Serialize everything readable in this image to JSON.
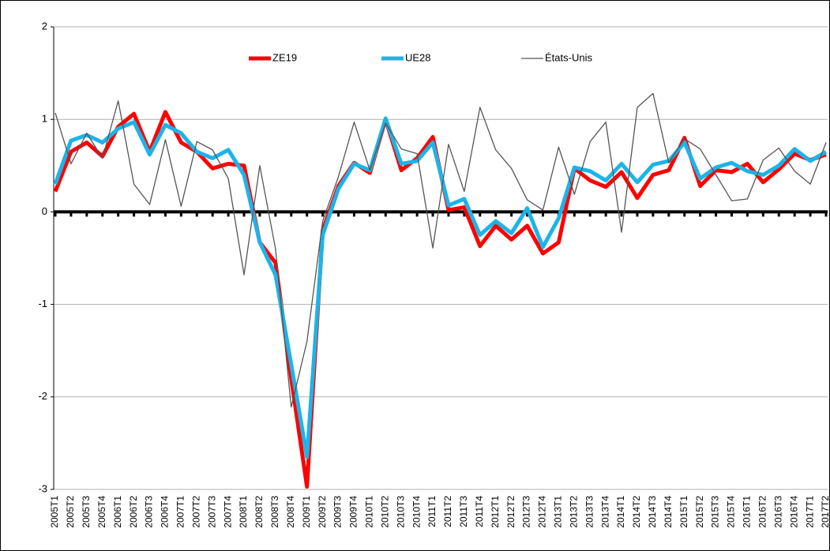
{
  "chart_data": {
    "type": "line",
    "categories": [
      "2005T1",
      "2005T2",
      "2005T3",
      "2005T4",
      "2006T1",
      "2006T2",
      "2006T3",
      "2006T4",
      "2007T1",
      "2007T2",
      "2007T3",
      "2007T4",
      "2008T1",
      "2008T2",
      "2008T3",
      "2008T4",
      "2009T1",
      "2009T2",
      "2009T3",
      "2009T4",
      "2010T1",
      "2010T2",
      "2010T3",
      "2010T4",
      "2011T1",
      "2011T2",
      "2011T3",
      "2011T4",
      "2012T1",
      "2012T2",
      "2012T3",
      "2012T4",
      "2013T1",
      "2013T2",
      "2013T3",
      "2013T4",
      "2014T1",
      "2014T2",
      "2014T3",
      "2014T4",
      "2015T1",
      "2015T2",
      "2015T3",
      "2015T4",
      "2016T1",
      "2016T2",
      "2016T3",
      "2016T4",
      "2017T1",
      "2017T2"
    ],
    "series": [
      {
        "name": "ZE19",
        "color": "#ff0000",
        "values": [
          0.22,
          0.65,
          0.75,
          0.6,
          0.92,
          1.06,
          0.65,
          1.08,
          0.75,
          0.65,
          0.47,
          0.52,
          0.5,
          -0.33,
          -0.55,
          -1.8,
          -2.97,
          -0.2,
          0.28,
          0.53,
          0.42,
          1.0,
          0.45,
          0.58,
          0.81,
          0.02,
          0.05,
          -0.37,
          -0.15,
          -0.3,
          -0.15,
          -0.45,
          -0.33,
          0.47,
          0.34,
          0.27,
          0.43,
          0.15,
          0.4,
          0.45,
          0.8,
          0.28,
          0.45,
          0.43,
          0.52,
          0.32,
          0.46,
          0.63,
          0.56,
          0.62
        ]
      },
      {
        "name": "UE28",
        "color": "#1cb4e8",
        "values": [
          0.3,
          0.77,
          0.83,
          0.75,
          0.9,
          0.97,
          0.62,
          0.94,
          0.85,
          0.65,
          0.58,
          0.67,
          0.4,
          -0.33,
          -0.68,
          -1.65,
          -2.65,
          -0.25,
          0.25,
          0.52,
          0.45,
          1.01,
          0.52,
          0.55,
          0.75,
          0.07,
          0.14,
          -0.25,
          -0.1,
          -0.23,
          0.04,
          -0.38,
          -0.07,
          0.48,
          0.44,
          0.34,
          0.52,
          0.32,
          0.51,
          0.55,
          0.75,
          0.36,
          0.48,
          0.53,
          0.44,
          0.4,
          0.5,
          0.68,
          0.55,
          0.65
        ]
      },
      {
        "name": "États-Unis",
        "color": "#555555",
        "values": [
          1.07,
          0.52,
          0.85,
          0.58,
          1.2,
          0.3,
          0.08,
          0.78,
          0.06,
          0.76,
          0.67,
          0.36,
          -0.68,
          0.5,
          -0.4,
          -2.11,
          -1.4,
          -0.1,
          0.38,
          0.97,
          0.45,
          0.96,
          0.68,
          0.63,
          -0.39,
          0.73,
          0.22,
          1.13,
          0.67,
          0.47,
          0.13,
          0.02,
          0.7,
          0.19,
          0.76,
          0.97,
          -0.22,
          1.13,
          1.28,
          0.53,
          0.79,
          0.68,
          0.4,
          0.12,
          0.14,
          0.56,
          0.69,
          0.44,
          0.3,
          0.75
        ]
      }
    ],
    "ylim": [
      -3,
      2
    ],
    "yticks": [
      -3,
      -2,
      -1,
      0,
      1,
      2
    ],
    "grid": true,
    "legend": "top"
  }
}
